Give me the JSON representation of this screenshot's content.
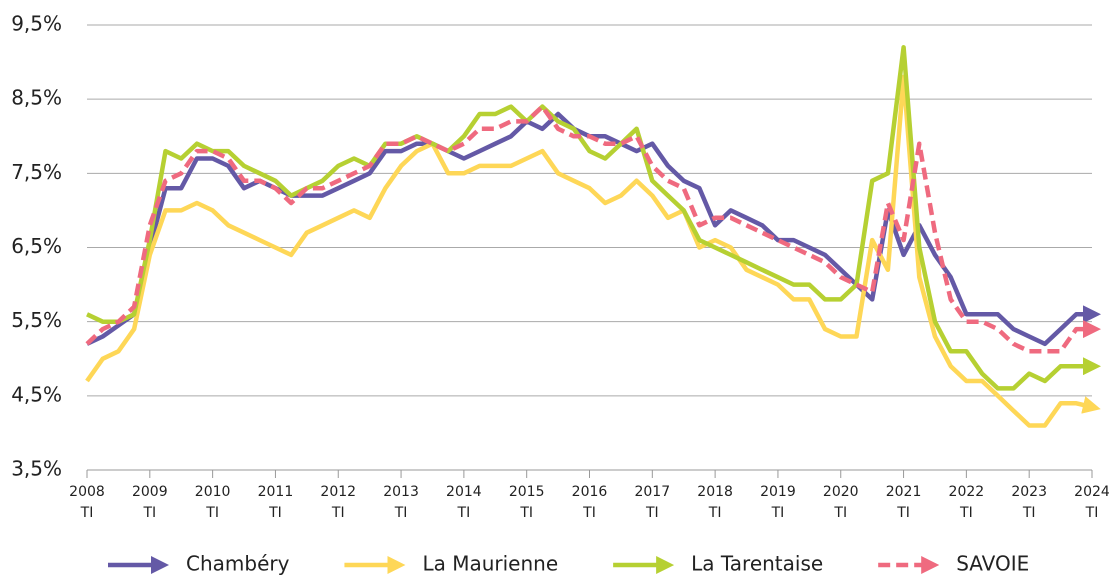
{
  "chart_data": {
    "type": "line",
    "categories": [
      "2008",
      null,
      null,
      null,
      "2009",
      null,
      null,
      null,
      "2010",
      null,
      null,
      null,
      "2011",
      null,
      null,
      null,
      "2012",
      null,
      null,
      null,
      "2013",
      null,
      null,
      null,
      "2014",
      null,
      null,
      null,
      "2015",
      null,
      null,
      null,
      "2016",
      null,
      null,
      null,
      "2017",
      null,
      null,
      null,
      "2018",
      null,
      null,
      null,
      "2019",
      null,
      null,
      null,
      "2020",
      null,
      null,
      null,
      "2021",
      null,
      null,
      null,
      "2022",
      null,
      null,
      null,
      "2023",
      null,
      null,
      null,
      "2024"
    ],
    "x_sublabel": "TI",
    "ylim": [
      3.5,
      9.5
    ],
    "yticks": [
      {
        "value": 3.5,
        "label": "3,5%"
      },
      {
        "value": 4.5,
        "label": "4,5%"
      },
      {
        "value": 5.5,
        "label": "5,5%"
      },
      {
        "value": 6.5,
        "label": "6,5%"
      },
      {
        "value": 7.5,
        "label": "7,5%"
      },
      {
        "value": 8.5,
        "label": "8,5%"
      },
      {
        "value": 9.5,
        "label": "9,5%"
      }
    ],
    "grid": true,
    "legend": "bottom",
    "series": [
      {
        "name": "Chambéry",
        "color": "#6459a6",
        "dashed": false,
        "values": [
          5.2,
          5.3,
          5.45,
          5.6,
          6.5,
          7.3,
          7.3,
          7.7,
          7.7,
          7.6,
          7.3,
          7.4,
          7.3,
          7.2,
          7.2,
          7.2,
          7.3,
          7.4,
          7.5,
          7.8,
          7.8,
          7.9,
          7.9,
          7.8,
          7.7,
          7.8,
          7.9,
          8.0,
          8.2,
          8.1,
          8.3,
          8.1,
          8.0,
          8.0,
          7.9,
          7.8,
          7.9,
          7.6,
          7.4,
          7.3,
          6.8,
          7.0,
          6.9,
          6.8,
          6.6,
          6.6,
          6.5,
          6.4,
          6.2,
          6.0,
          5.8,
          7.0,
          6.4,
          6.8,
          6.4,
          6.1,
          5.6,
          5.6,
          5.6,
          5.4,
          5.3,
          5.2,
          5.4,
          5.6,
          5.6
        ]
      },
      {
        "name": "La Maurienne",
        "color": "#fed757",
        "dashed": false,
        "values": [
          4.7,
          5.0,
          5.1,
          5.4,
          6.4,
          7.0,
          7.0,
          7.1,
          7.0,
          6.8,
          6.7,
          6.6,
          6.5,
          6.4,
          6.7,
          6.8,
          6.9,
          7.0,
          6.9,
          7.3,
          7.6,
          7.8,
          7.9,
          7.5,
          7.5,
          7.6,
          7.6,
          7.6,
          7.7,
          7.8,
          7.5,
          7.4,
          7.3,
          7.1,
          7.2,
          7.4,
          7.2,
          6.9,
          7.0,
          6.5,
          6.6,
          6.5,
          6.2,
          6.1,
          6.0,
          5.8,
          5.8,
          5.4,
          5.3,
          5.3,
          6.6,
          6.2,
          8.8,
          6.1,
          5.3,
          4.9,
          4.7,
          4.7,
          4.5,
          4.3,
          4.1,
          4.1,
          4.4,
          4.4,
          4.35
        ]
      },
      {
        "name": "La Tarentaise",
        "color": "#b6d032",
        "dashed": false,
        "values": [
          5.6,
          5.5,
          5.5,
          5.6,
          6.6,
          7.8,
          7.7,
          7.9,
          7.8,
          7.8,
          7.6,
          7.5,
          7.4,
          7.2,
          7.3,
          7.4,
          7.6,
          7.7,
          7.6,
          7.9,
          7.9,
          8.0,
          7.9,
          7.8,
          8.0,
          8.3,
          8.3,
          8.4,
          8.2,
          8.4,
          8.2,
          8.1,
          7.8,
          7.7,
          7.9,
          8.1,
          7.4,
          7.2,
          7.0,
          6.6,
          6.5,
          6.4,
          6.3,
          6.2,
          6.1,
          6.0,
          6.0,
          5.8,
          5.8,
          6.0,
          7.4,
          7.5,
          9.2,
          6.5,
          5.5,
          5.1,
          5.1,
          4.8,
          4.6,
          4.6,
          4.8,
          4.7,
          4.9,
          4.9,
          4.9
        ]
      },
      {
        "name": "SAVOIE",
        "color": "#ef6a7f",
        "dashed": true,
        "values": [
          5.2,
          5.4,
          5.5,
          5.7,
          6.8,
          7.4,
          7.5,
          7.8,
          7.8,
          7.7,
          7.4,
          7.4,
          7.3,
          7.1,
          7.3,
          7.3,
          7.4,
          7.5,
          7.6,
          7.9,
          7.9,
          8.0,
          7.9,
          7.8,
          7.9,
          8.1,
          8.1,
          8.2,
          8.2,
          8.4,
          8.1,
          8.0,
          8.0,
          7.9,
          7.9,
          8.0,
          7.6,
          7.4,
          7.3,
          6.8,
          6.9,
          6.9,
          6.8,
          6.7,
          6.6,
          6.5,
          6.4,
          6.3,
          6.1,
          6.0,
          5.9,
          7.1,
          6.6,
          7.9,
          6.7,
          5.8,
          5.5,
          5.5,
          5.4,
          5.2,
          5.1,
          5.1,
          5.1,
          5.4,
          5.4
        ]
      }
    ]
  }
}
